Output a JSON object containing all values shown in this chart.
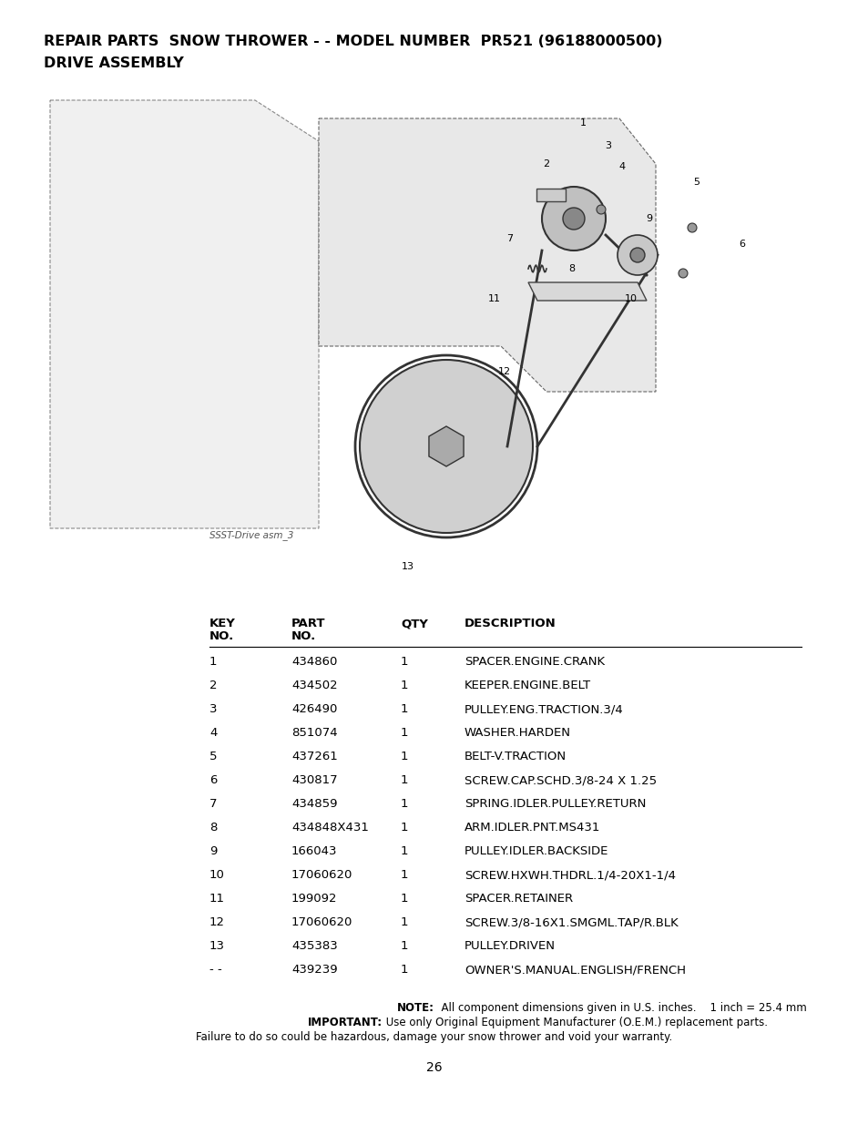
{
  "title_line1": "REPAIR PARTS  SNOW THROWER - - MODEL NUMBER  PR521 (96188000500)",
  "title_line2": "DRIVE ASSEMBLY",
  "image_caption": "SSST-Drive asm_3",
  "table_headers": [
    "KEY\nNO.",
    "PART\nNO.",
    "QTY",
    "DESCRIPTION"
  ],
  "table_rows": [
    [
      "1",
      "434860",
      "1",
      "SPACER.ENGINE.CRANK"
    ],
    [
      "2",
      "434502",
      "1",
      "KEEPER.ENGINE.BELT"
    ],
    [
      "3",
      "426490",
      "1",
      "PULLEY.ENG.TRACTION.3/4"
    ],
    [
      "4",
      "851074",
      "1",
      "WASHER.HARDEN"
    ],
    [
      "5",
      "437261",
      "1",
      "BELT-V.TRACTION"
    ],
    [
      "6",
      "430817",
      "1",
      "SCREW.CAP.SCHD.3/8-24 X 1.25"
    ],
    [
      "7",
      "434859",
      "1",
      "SPRING.IDLER.PULLEY.RETURN"
    ],
    [
      "8",
      "434848X431",
      "1",
      "ARM.IDLER.PNT.MS431"
    ],
    [
      "9",
      "166043",
      "1",
      "PULLEY.IDLER.BACKSIDE"
    ],
    [
      "10",
      "17060620",
      "1",
      "SCREW.HXWH.THDRL.1/4-20X1-1/4"
    ],
    [
      "11",
      "199092",
      "1",
      "SPACER.RETAINER"
    ],
    [
      "12",
      "17060620",
      "1",
      "SCREW.3/8-16X1.SMGML.TAP/R.BLK"
    ],
    [
      "13",
      "435383",
      "1",
      "PULLEY.DRIVEN"
    ],
    [
      "- -",
      "439239",
      "1",
      "OWNER'S.MANUAL.ENGLISH/FRENCH"
    ]
  ],
  "note_line1_bold": "NOTE:",
  "note_line1_rest": "  All component dimensions given in U.S. inches.    1 inch = 25.4 mm",
  "note_line2_bold": "IMPORTANT:",
  "note_line2_rest": " Use only Original Equipment Manufacturer (O.E.M.) replacement parts.",
  "note_line3": "Failure to do so could be hazardous, damage your snow thrower and void your warranty.",
  "page_number": "26",
  "bg_color": "#ffffff",
  "text_color": "#000000",
  "title_fontsize": 11.5,
  "table_fontsize": 9.5,
  "note_fontsize": 8.5
}
